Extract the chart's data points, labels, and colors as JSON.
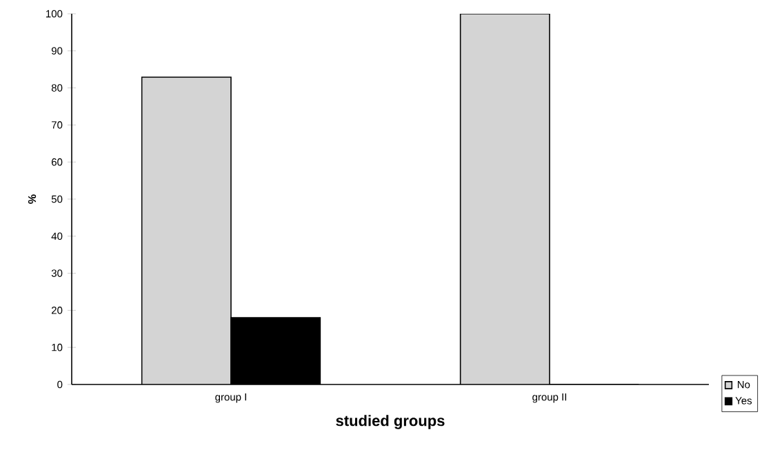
{
  "chart_data": {
    "type": "bar",
    "xlabel": "studied groups",
    "ylabel": "%",
    "categories": [
      "group I",
      "group II"
    ],
    "series": [
      {
        "name": "No",
        "color": "#d4d4d4",
        "values": [
          82.9,
          100
        ]
      },
      {
        "name": "Yes",
        "color": "#000000",
        "values": [
          18,
          0
        ]
      }
    ],
    "ylim": [
      0,
      100
    ],
    "yticks": [
      0,
      10,
      20,
      30,
      40,
      50,
      60,
      70,
      80,
      90,
      100
    ],
    "grid": false,
    "legend": "bottom right"
  }
}
